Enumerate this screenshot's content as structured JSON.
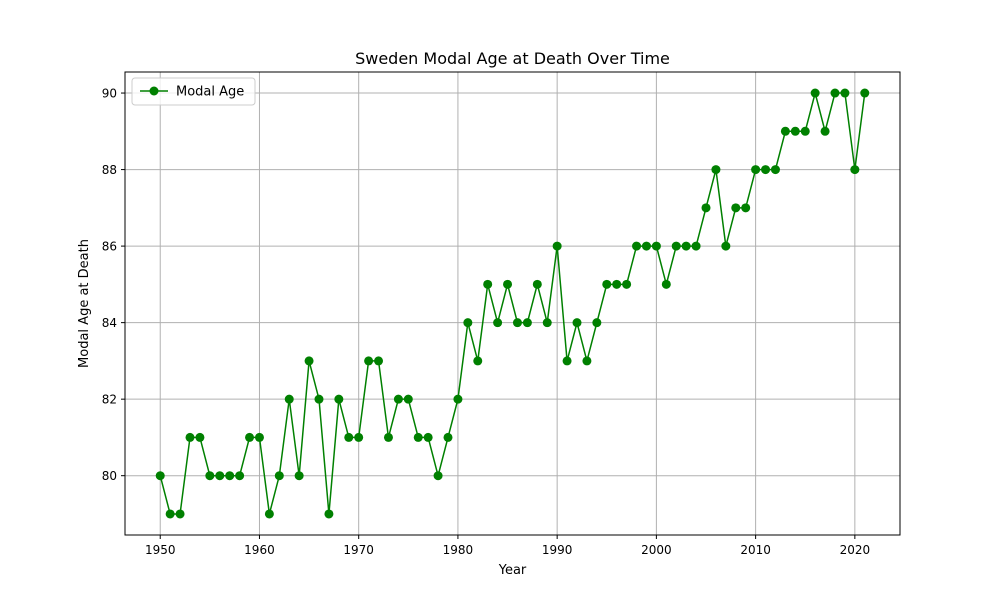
{
  "chart_data": {
    "type": "line",
    "title": "Sweden Modal Age at Death Over Time",
    "xlabel": "Year",
    "ylabel": "Modal Age at Death",
    "xlim": [
      1946.45,
      2024.55
    ],
    "ylim": [
      78.45,
      90.55
    ],
    "xticks": [
      1950,
      1960,
      1970,
      1980,
      1990,
      2000,
      2010,
      2020
    ],
    "yticks": [
      80,
      82,
      84,
      86,
      88,
      90
    ],
    "grid": true,
    "legend_position": "top-left",
    "series": [
      {
        "name": "Modal Age",
        "color": "#008000",
        "marker": "circle",
        "x": [
          1950,
          1951,
          1952,
          1953,
          1954,
          1955,
          1956,
          1957,
          1958,
          1959,
          1960,
          1961,
          1962,
          1963,
          1964,
          1965,
          1966,
          1967,
          1968,
          1969,
          1970,
          1971,
          1972,
          1973,
          1974,
          1975,
          1976,
          1977,
          1978,
          1979,
          1980,
          1981,
          1982,
          1983,
          1984,
          1985,
          1986,
          1987,
          1988,
          1989,
          1990,
          1991,
          1992,
          1993,
          1994,
          1995,
          1996,
          1997,
          1998,
          1999,
          2000,
          2001,
          2002,
          2003,
          2004,
          2005,
          2006,
          2007,
          2008,
          2009,
          2010,
          2011,
          2012,
          2013,
          2014,
          2015,
          2016,
          2017,
          2018,
          2019,
          2020,
          2021
        ],
        "y": [
          80,
          79,
          79,
          81,
          81,
          80,
          80,
          80,
          80,
          81,
          81,
          79,
          80,
          82,
          80,
          83,
          82,
          79,
          82,
          81,
          81,
          83,
          83,
          81,
          82,
          82,
          81,
          81,
          80,
          81,
          82,
          84,
          83,
          85,
          84,
          85,
          84,
          84,
          85,
          84,
          86,
          83,
          84,
          83,
          84,
          85,
          85,
          85,
          86,
          86,
          86,
          85,
          86,
          86,
          86,
          87,
          88,
          86,
          87,
          87,
          88,
          88,
          88,
          89,
          89,
          89,
          90,
          89,
          90,
          90,
          88,
          90
        ]
      }
    ]
  }
}
